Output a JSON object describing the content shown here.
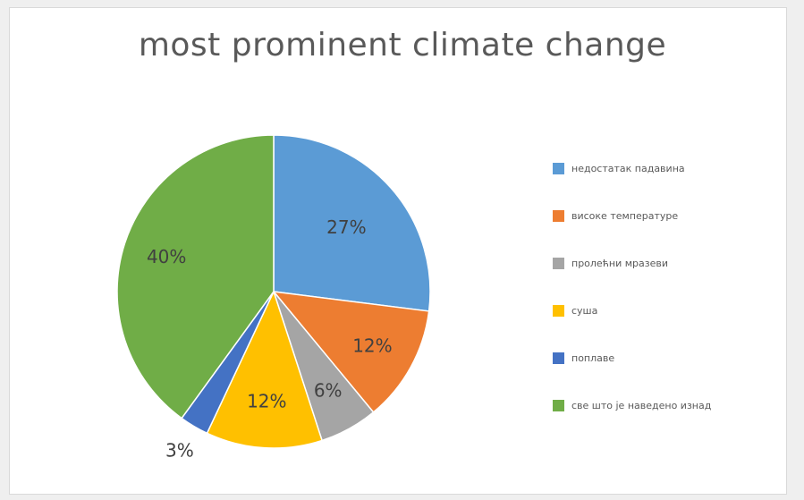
{
  "chart_data": {
    "type": "pie",
    "title": "most prominent climate change",
    "slices": [
      {
        "label": "недостатак падавина",
        "value": 27,
        "display": "27%",
        "color": "#5B9BD5"
      },
      {
        "label": "високе температуре",
        "value": 12,
        "display": "12%",
        "color": "#ED7D31"
      },
      {
        "label": "пролећни мразеви",
        "value": 6,
        "display": "6%",
        "color": "#A5A5A5"
      },
      {
        "label": "суша",
        "value": 12,
        "display": "12%",
        "color": "#FFC000"
      },
      {
        "label": "поплаве",
        "value": 3,
        "display": "3%",
        "color": "#4472C4"
      },
      {
        "label": "све што је наведено изнад",
        "value": 40,
        "display": "40%",
        "color": "#70AD47"
      }
    ],
    "start_angle": "12 o'clock",
    "direction": "clockwise",
    "legend_position": "right"
  }
}
